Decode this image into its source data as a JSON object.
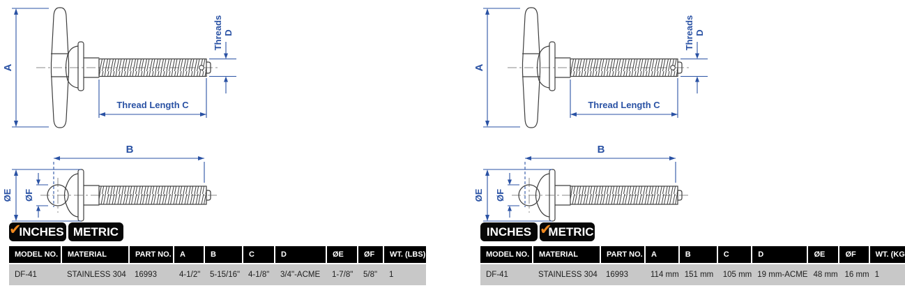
{
  "drawing_labels": {
    "a": "A",
    "b": "B",
    "thread_length": "Thread Length C",
    "threads_line1": "Threads",
    "threads_line2": "D",
    "oe": "ØE",
    "of": "ØF"
  },
  "icons": {
    "check": "✔"
  },
  "colors": {
    "dimension_blue": "#2a52a4",
    "check_orange": "#f0891f",
    "header_black": "#000000",
    "row_gray": "#c8c8c8"
  },
  "panels": [
    {
      "tabs": {
        "inches": "INCHES",
        "metric": "METRIC",
        "selected": "inches"
      },
      "table": {
        "headers": [
          "MODEL NO.",
          "MATERIAL",
          "PART NO.",
          "A",
          "B",
          "C",
          "D",
          "ØE",
          "ØF",
          "WT. (LBS)"
        ],
        "row": [
          "DF-41",
          "STAINLESS 304",
          "16993",
          "4-1/2\"",
          "5-15/16\"",
          "4-1/8\"",
          "3/4\"-ACME",
          "1-7/8\"",
          "5/8\"",
          "1"
        ]
      }
    },
    {
      "tabs": {
        "inches": "INCHES",
        "metric": "METRIC",
        "selected": "metric"
      },
      "table": {
        "headers": [
          "MODEL NO.",
          "MATERIAL",
          "PART NO.",
          "A",
          "B",
          "C",
          "D",
          "ØE",
          "ØF",
          "WT. (KG)"
        ],
        "row": [
          "DF-41",
          "STAINLESS 304",
          "16993",
          "114 mm",
          "151 mm",
          "105 mm",
          "19 mm-ACME",
          "48 mm",
          "16 mm",
          "1"
        ]
      }
    }
  ]
}
